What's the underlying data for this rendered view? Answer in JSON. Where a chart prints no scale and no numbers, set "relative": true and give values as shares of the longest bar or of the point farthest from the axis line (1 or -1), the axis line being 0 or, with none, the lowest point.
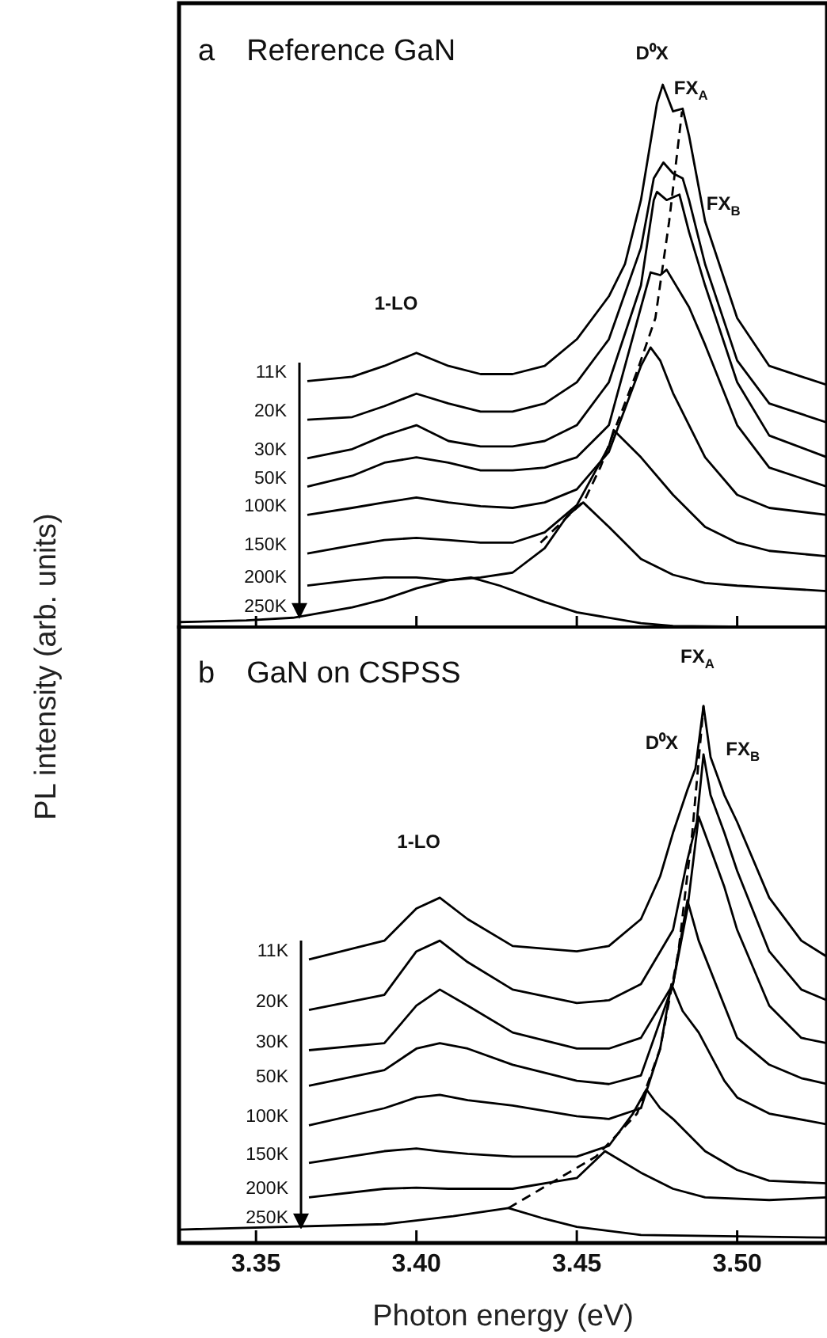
{
  "chart_data": [
    {
      "type": "line",
      "title": "Reference GaN",
      "ylabel": "PL intensity (arb. units)",
      "relative": true,
      "xlim": [
        3.326,
        3.528
      ],
      "xticks": [
        {
          "value": 3.35,
          "label": null
        },
        {
          "value": 3.4,
          "label": null
        },
        {
          "value": 3.45,
          "label": null
        },
        {
          "value": 3.5,
          "label": null
        }
      ],
      "tick_labels": false,
      "grid": false,
      "marker": "none",
      "annotations": [
        "a",
        "1-LO",
        "D⁰X",
        "FX$_{A}$",
        "FX$_{B}$"
      ],
      "series": [
        {
          "name": "11K",
          "color": "#000000",
          "x": [
            3.366,
            3.38,
            3.39,
            3.4,
            3.41,
            3.42,
            3.43,
            3.44,
            3.45,
            3.46,
            3.465,
            3.47,
            3.475,
            3.4768,
            3.48,
            3.483,
            3.485,
            3.49,
            3.5,
            3.51,
            3.528
          ],
          "values": [
            0.455,
            0.463,
            0.483,
            0.507,
            0.483,
            0.468,
            0.468,
            0.483,
            0.532,
            0.611,
            0.67,
            0.788,
            0.966,
            1.0,
            0.951,
            0.956,
            0.906,
            0.749,
            0.571,
            0.483,
            0.448
          ]
        },
        {
          "name": "20K",
          "color": "#000000",
          "x": [
            3.366,
            3.38,
            3.39,
            3.4,
            3.41,
            3.42,
            3.43,
            3.44,
            3.45,
            3.46,
            3.47,
            3.474,
            3.477,
            3.48,
            3.483,
            3.485,
            3.49,
            3.5,
            3.51,
            3.528
          ],
          "values": [
            0.384,
            0.389,
            0.409,
            0.432,
            0.414,
            0.399,
            0.399,
            0.414,
            0.453,
            0.532,
            0.7,
            0.828,
            0.857,
            0.837,
            0.828,
            0.788,
            0.67,
            0.493,
            0.414,
            0.379
          ]
        },
        {
          "name": "30K",
          "color": "#000000",
          "x": [
            3.366,
            3.38,
            3.39,
            3.4,
            3.41,
            3.42,
            3.43,
            3.44,
            3.45,
            3.46,
            3.47,
            3.474,
            3.475,
            3.478,
            3.482,
            3.485,
            3.49,
            3.5,
            3.51,
            3.528
          ],
          "values": [
            0.313,
            0.33,
            0.355,
            0.374,
            0.345,
            0.335,
            0.335,
            0.345,
            0.374,
            0.453,
            0.631,
            0.788,
            0.803,
            0.788,
            0.798,
            0.729,
            0.631,
            0.453,
            0.355,
            0.315
          ]
        },
        {
          "name": "50K",
          "color": "#000000",
          "x": [
            3.366,
            3.38,
            3.39,
            3.4,
            3.41,
            3.42,
            3.43,
            3.44,
            3.45,
            3.46,
            3.47,
            3.473,
            3.476,
            3.478,
            3.485,
            3.49,
            3.5,
            3.51,
            3.528
          ],
          "values": [
            0.261,
            0.281,
            0.305,
            0.315,
            0.305,
            0.291,
            0.291,
            0.296,
            0.315,
            0.374,
            0.591,
            0.655,
            0.65,
            0.66,
            0.591,
            0.522,
            0.374,
            0.296,
            0.261
          ]
        },
        {
          "name": "100K",
          "color": "#000000",
          "x": [
            3.366,
            3.38,
            3.39,
            3.4,
            3.41,
            3.42,
            3.43,
            3.44,
            3.45,
            3.46,
            3.47,
            3.473,
            3.476,
            3.48,
            3.485,
            3.49,
            3.5,
            3.51,
            3.528
          ],
          "values": [
            0.209,
            0.222,
            0.232,
            0.241,
            0.232,
            0.225,
            0.222,
            0.232,
            0.256,
            0.325,
            0.483,
            0.517,
            0.493,
            0.433,
            0.374,
            0.315,
            0.246,
            0.222,
            0.209
          ]
        },
        {
          "name": "150K",
          "color": "#000000",
          "x": [
            3.366,
            3.38,
            3.39,
            3.4,
            3.41,
            3.42,
            3.43,
            3.44,
            3.45,
            3.46,
            3.4615,
            3.47,
            3.48,
            3.49,
            3.5,
            3.51,
            3.528
          ],
          "values": [
            0.138,
            0.153,
            0.163,
            0.167,
            0.163,
            0.158,
            0.158,
            0.177,
            0.227,
            0.335,
            0.365,
            0.315,
            0.246,
            0.187,
            0.158,
            0.143,
            0.133
          ]
        },
        {
          "name": "200K",
          "color": "#000000",
          "x": [
            3.366,
            3.38,
            3.39,
            3.4,
            3.41,
            3.42,
            3.43,
            3.44,
            3.447,
            3.452,
            3.46,
            3.47,
            3.48,
            3.49,
            3.5,
            3.528
          ],
          "values": [
            0.079,
            0.089,
            0.094,
            0.094,
            0.089,
            0.094,
            0.103,
            0.148,
            0.207,
            0.232,
            0.187,
            0.128,
            0.099,
            0.084,
            0.079,
            0.069
          ]
        },
        {
          "name": "250K",
          "color": "#000000",
          "x": [
            3.326,
            3.347,
            3.3615,
            3.38,
            3.39,
            3.4,
            3.41,
            3.417,
            3.426,
            3.44,
            3.45,
            3.47,
            3.48,
            3.528
          ],
          "values": [
            0.012,
            0.015,
            0.02,
            0.039,
            0.054,
            0.074,
            0.089,
            0.094,
            0.079,
            0.049,
            0.03,
            0.01,
            0.005,
            0.002
          ]
        },
        {
          "color": "#000000",
          "line_style": "dashed",
          "x": [
            3.4387,
            3.4524,
            3.4573,
            3.4688,
            3.4745,
            3.4788,
            3.4828
          ],
          "values": [
            0.158,
            0.236,
            0.296,
            0.473,
            0.571,
            0.749,
            0.951
          ]
        }
      ]
    },
    {
      "type": "line",
      "title": "GaN on CSPSS",
      "xlabel": "Photon energy (eV)",
      "relative": true,
      "xlim": [
        3.326,
        3.528
      ],
      "xticks": [
        3.35,
        {
          "value": 3.4,
          "label": "3.40"
        },
        3.45,
        {
          "value": 3.5,
          "label": "3.50"
        }
      ],
      "tick_labels": "x",
      "grid": false,
      "marker": "none",
      "annotations": [
        "b",
        "1-LO",
        "FX$_{A}$",
        "D⁰X",
        "FX$_{B}$"
      ],
      "series": [
        {
          "name": "11K",
          "color": "#000000",
          "x": [
            3.3665,
            3.39,
            3.4,
            3.4073,
            3.416,
            3.43,
            3.45,
            3.46,
            3.47,
            3.476,
            3.48,
            3.4845,
            3.487,
            3.4895,
            3.4917,
            3.496,
            3.5,
            3.51,
            3.52,
            3.528
          ],
          "values": [
            0.528,
            0.563,
            0.623,
            0.643,
            0.603,
            0.553,
            0.543,
            0.553,
            0.603,
            0.683,
            0.764,
            0.844,
            0.884,
            1.0,
            0.905,
            0.834,
            0.784,
            0.643,
            0.563,
            0.533
          ]
        },
        {
          "name": "20K",
          "color": "#000000",
          "x": [
            3.3665,
            3.39,
            3.4,
            3.4073,
            3.416,
            3.43,
            3.45,
            3.46,
            3.47,
            3.48,
            3.4845,
            3.4874,
            3.4895,
            3.4917,
            3.496,
            3.5,
            3.51,
            3.52,
            3.528
          ],
          "values": [
            0.434,
            0.462,
            0.543,
            0.563,
            0.523,
            0.472,
            0.447,
            0.452,
            0.482,
            0.583,
            0.714,
            0.784,
            0.91,
            0.834,
            0.764,
            0.693,
            0.543,
            0.472,
            0.452
          ]
        },
        {
          "name": "30K",
          "color": "#000000",
          "x": [
            3.3665,
            3.39,
            3.4,
            3.4073,
            3.416,
            3.43,
            3.45,
            3.46,
            3.47,
            3.48,
            3.4845,
            3.488,
            3.4917,
            3.496,
            3.5,
            3.51,
            3.52,
            3.528
          ],
          "values": [
            0.359,
            0.372,
            0.442,
            0.472,
            0.442,
            0.392,
            0.362,
            0.362,
            0.382,
            0.482,
            0.623,
            0.794,
            0.734,
            0.663,
            0.583,
            0.442,
            0.382,
            0.372
          ]
        },
        {
          "name": "50K",
          "color": "#000000",
          "x": [
            3.3665,
            3.39,
            3.4,
            3.4073,
            3.416,
            3.43,
            3.45,
            3.46,
            3.47,
            3.48,
            3.4845,
            3.488,
            3.496,
            3.5,
            3.51,
            3.52,
            3.528
          ],
          "values": [
            0.293,
            0.322,
            0.362,
            0.372,
            0.362,
            0.332,
            0.302,
            0.296,
            0.312,
            0.482,
            0.638,
            0.563,
            0.442,
            0.382,
            0.332,
            0.307,
            0.296
          ]
        },
        {
          "name": "100K",
          "color": "#000000",
          "x": [
            3.3665,
            3.39,
            3.4,
            3.4073,
            3.416,
            3.43,
            3.45,
            3.46,
            3.47,
            3.476,
            3.4795,
            3.483,
            3.488,
            3.496,
            3.5,
            3.51,
            3.528
          ],
          "values": [
            0.219,
            0.251,
            0.271,
            0.276,
            0.266,
            0.256,
            0.236,
            0.231,
            0.251,
            0.362,
            0.482,
            0.432,
            0.392,
            0.302,
            0.271,
            0.241,
            0.221
          ]
        },
        {
          "name": "150K",
          "color": "#000000",
          "x": [
            3.3665,
            3.39,
            3.4,
            3.4073,
            3.416,
            3.43,
            3.45,
            3.46,
            3.4675,
            3.4717,
            3.476,
            3.48,
            3.49,
            3.5,
            3.51,
            3.528
          ],
          "values": [
            0.149,
            0.171,
            0.176,
            0.171,
            0.166,
            0.161,
            0.161,
            0.181,
            0.241,
            0.286,
            0.251,
            0.231,
            0.171,
            0.136,
            0.116,
            0.111
          ]
        },
        {
          "name": "200K",
          "color": "#000000",
          "x": [
            3.3665,
            3.39,
            3.4,
            3.41,
            3.43,
            3.45,
            3.4588,
            3.47,
            3.48,
            3.49,
            3.51,
            3.528
          ],
          "values": [
            0.085,
            0.101,
            0.103,
            0.101,
            0.101,
            0.121,
            0.171,
            0.131,
            0.101,
            0.085,
            0.08,
            0.085
          ]
        },
        {
          "name": "250K",
          "color": "#000000",
          "x": [
            3.326,
            3.39,
            3.4115,
            3.4287,
            3.44,
            3.45,
            3.47,
            3.528
          ],
          "values": [
            0.025,
            0.035,
            0.05,
            0.065,
            0.045,
            0.03,
            0.015,
            0.01
          ]
        },
        {
          "color": "#000000",
          "line_style": "dashed",
          "x": [
            3.4287,
            3.456,
            3.4688,
            3.476,
            3.4817,
            3.486,
            3.4895
          ],
          "values": [
            0.065,
            0.161,
            0.241,
            0.362,
            0.543,
            0.764,
            1.0
          ]
        }
      ]
    }
  ]
}
